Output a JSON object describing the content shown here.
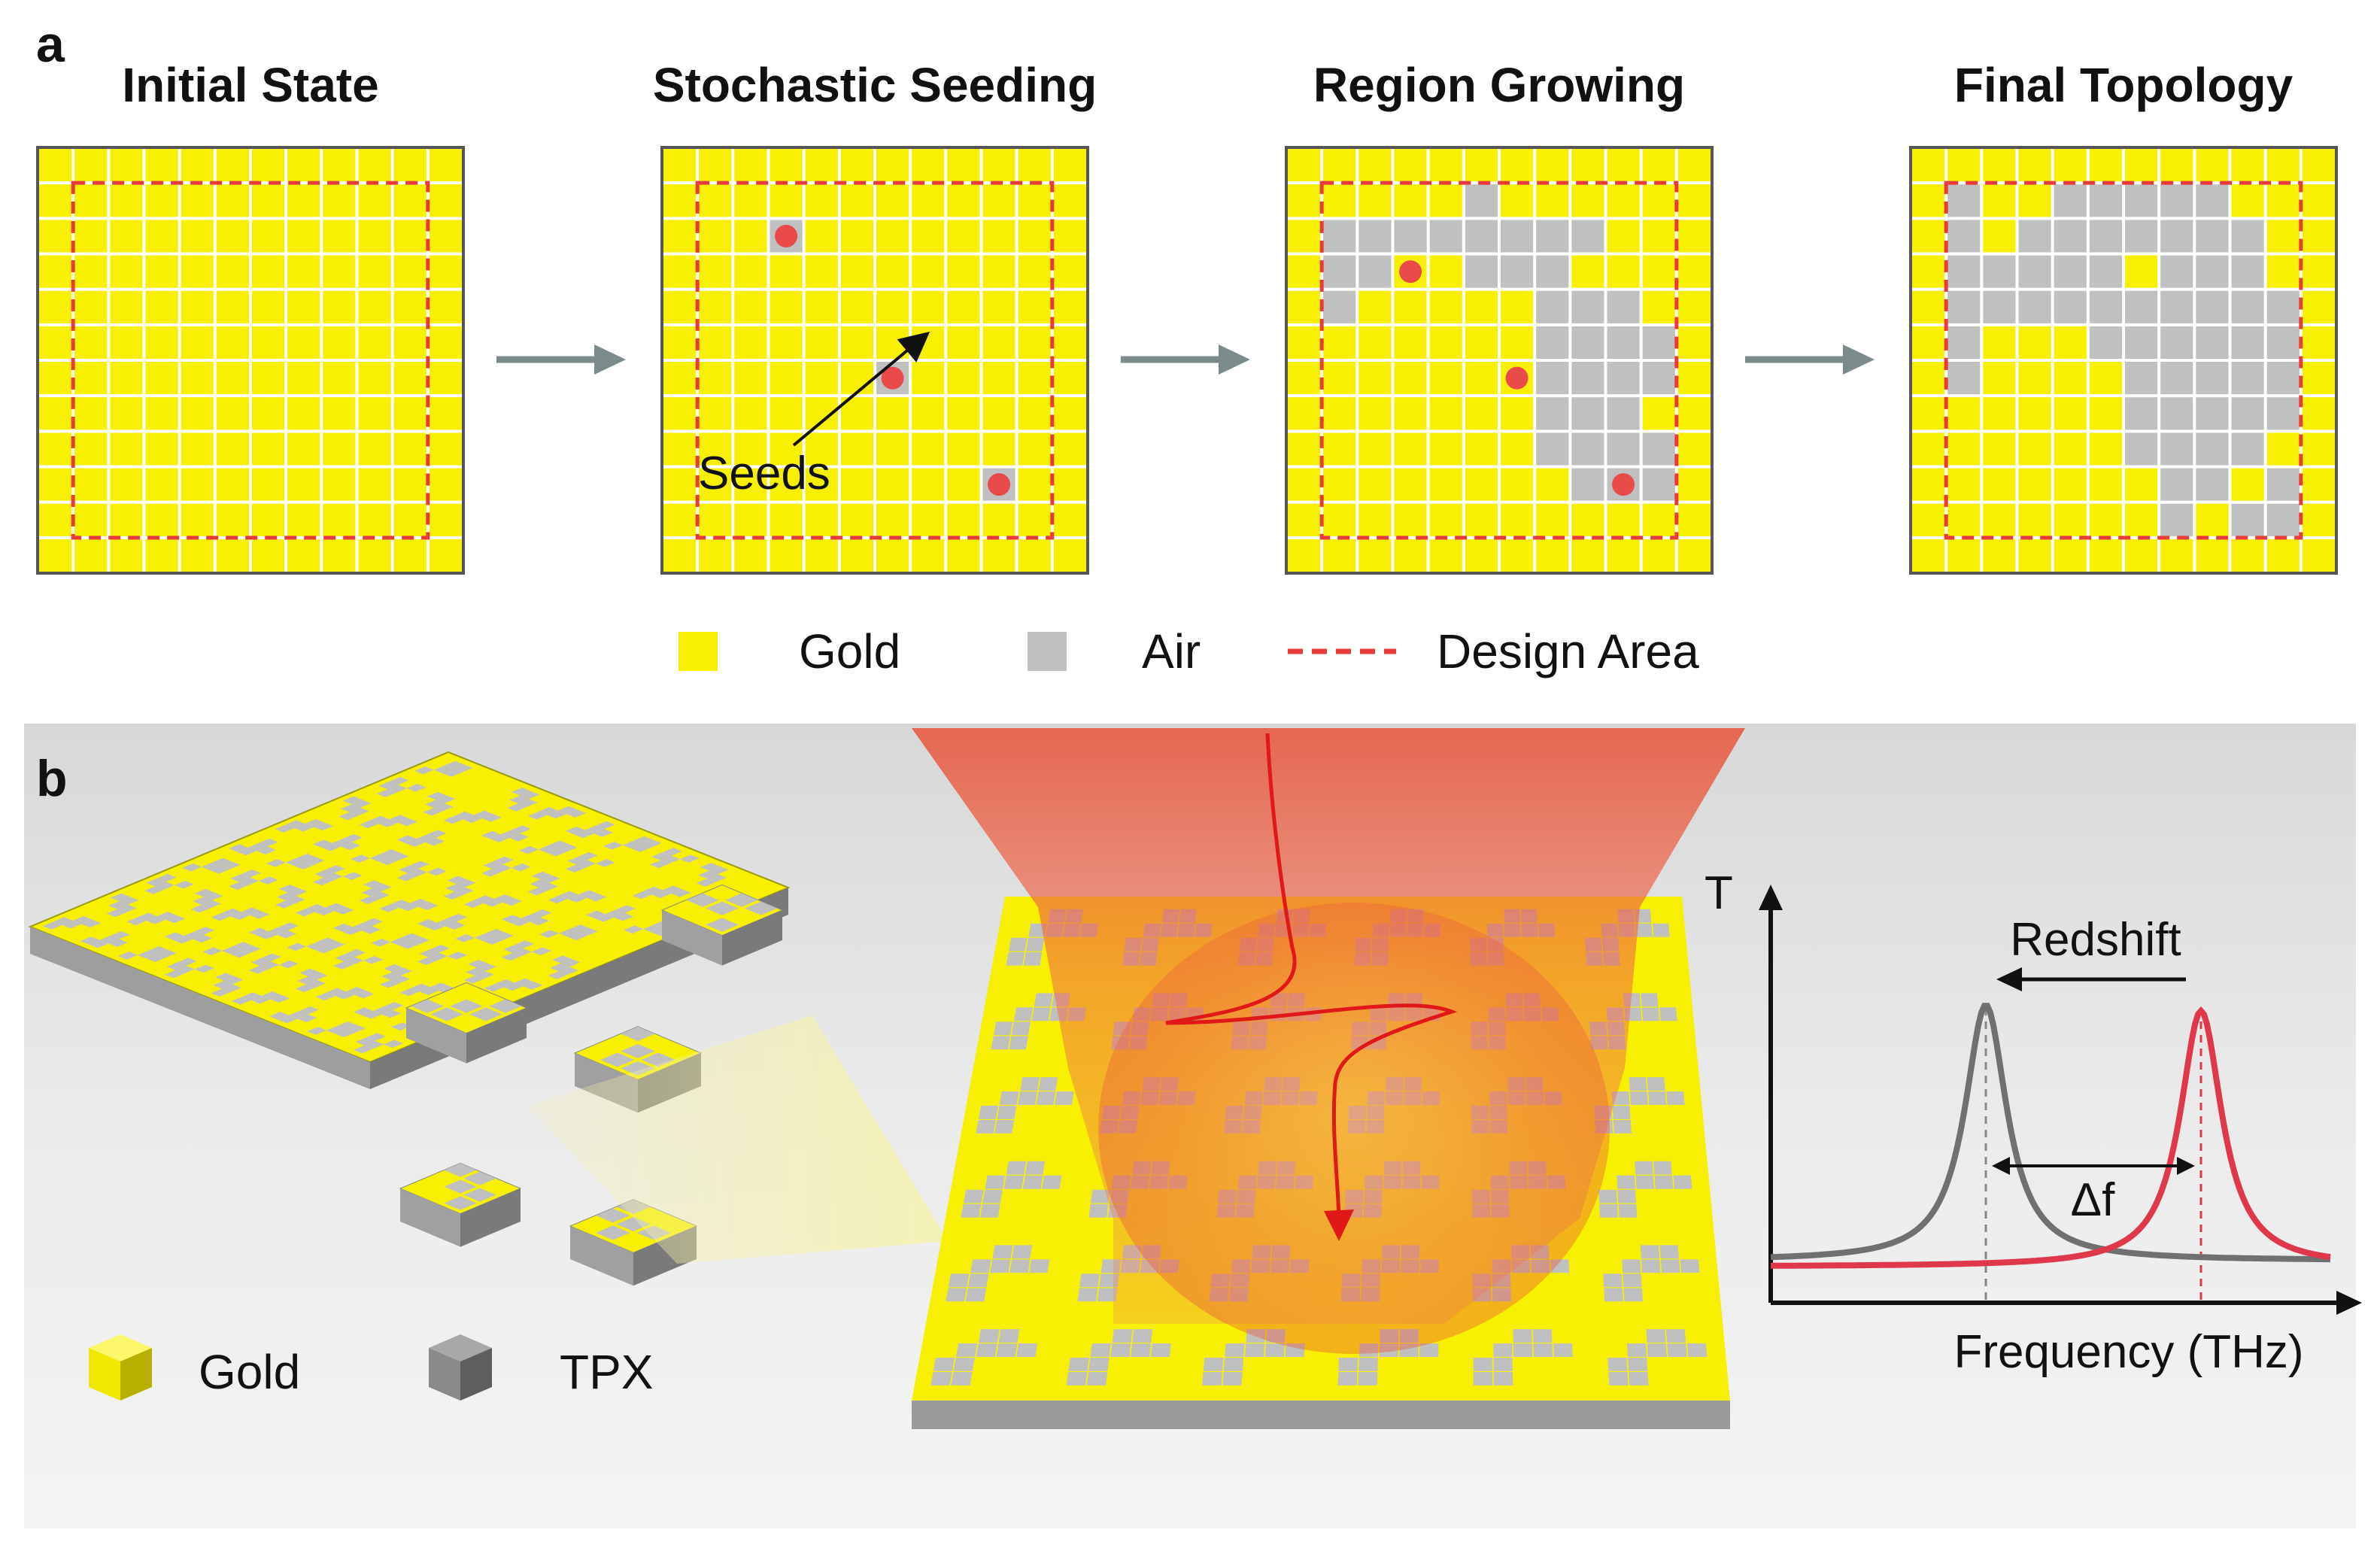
{
  "panel_a": {
    "letter": "a",
    "steps": [
      {
        "title": "Initial State"
      },
      {
        "title": "Stochastic Seeding"
      },
      {
        "title": "Region Growing"
      },
      {
        "title": "Final Topology"
      }
    ],
    "seeds_label": "Seeds",
    "legend": {
      "gold": "Gold",
      "air": "Air",
      "design_area": "Design Area"
    }
  },
  "panel_b": {
    "letter": "b",
    "legend": {
      "gold": "Gold",
      "tpx": "TPX"
    },
    "plot": {
      "y_label": "T",
      "x_label": "Frequency (THz)",
      "shift_label": "Redshift",
      "delta_label": "Δf"
    }
  },
  "colors": {
    "gold": "#f7f000",
    "air": "#c0c0c0",
    "design_area": "#e83a3a",
    "seed": "#e94b4b",
    "arrow": "#7b8b8b",
    "original_curve": "#707070",
    "shifted_curve": "#e0384b",
    "beam": "#e8543a"
  }
}
